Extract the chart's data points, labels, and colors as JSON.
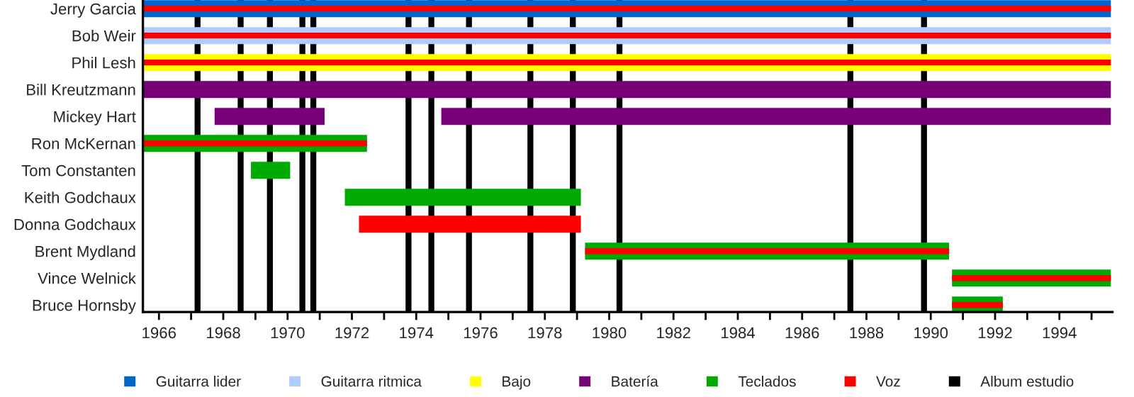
{
  "chart_data": {
    "type": "bar",
    "orientation": "horizontal",
    "categories": [
      "Jerry Garcia",
      "Bob Weir",
      "Phil Lesh",
      "Bill Kreutzmann",
      "Mickey Hart",
      "Ron McKernan",
      "Tom Constanten",
      "Keith Godchaux",
      "Donna Godchaux",
      "Brent Mydland",
      "Vince Welnick",
      "Bruce Hornsby"
    ],
    "series": [
      {
        "name": "Guitarra lider",
        "color": "#0066cc",
        "base": [
          1965.5,
          null,
          null,
          null,
          null,
          null,
          null,
          null,
          null,
          null,
          null,
          null
        ],
        "values": [
          30.1,
          null,
          null,
          null,
          null,
          null,
          null,
          null,
          null,
          null,
          null,
          null
        ]
      },
      {
        "name": "Guitarra ritmica",
        "color": "#b0ccff",
        "base": [
          null,
          1965.5,
          null,
          null,
          null,
          null,
          null,
          null,
          null,
          null,
          null,
          null
        ],
        "values": [
          null,
          30.1,
          null,
          null,
          null,
          null,
          null,
          null,
          null,
          null,
          null,
          null
        ]
      },
      {
        "name": "Bajo",
        "color": "#ffff00",
        "base": [
          null,
          null,
          1965.5,
          null,
          null,
          null,
          null,
          null,
          null,
          null,
          null,
          null
        ],
        "values": [
          null,
          null,
          30.1,
          null,
          null,
          null,
          null,
          null,
          null,
          null,
          null,
          null
        ]
      },
      {
        "name": "Batería",
        "color": "#770077",
        "base": [
          null,
          null,
          null,
          1965.5,
          1967.73,
          null,
          null,
          null,
          null,
          null,
          null,
          null
        ],
        "values": [
          null,
          null,
          null,
          30.1,
          3.42,
          null,
          null,
          null,
          null,
          null,
          null,
          null
        ]
      },
      {
        "color": "#770077",
        "base": [
          null,
          null,
          null,
          null,
          1974.78,
          null,
          null,
          null,
          null,
          null,
          null,
          null
        ],
        "values": [
          null,
          null,
          null,
          null,
          20.82,
          null,
          null,
          null,
          null,
          null,
          null,
          null
        ]
      },
      {
        "name": "Teclados",
        "color": "#00aa00",
        "base": [
          null,
          null,
          null,
          null,
          null,
          1965.5,
          1968.86,
          1971.78,
          null,
          1979.25,
          1990.66,
          1990.66
        ],
        "values": [
          null,
          null,
          null,
          null,
          null,
          6.97,
          1.22,
          7.34,
          null,
          11.32,
          4.94,
          1.58
        ]
      },
      {
        "name": "Voz",
        "color": "#ff0000",
        "base": [
          1965.5,
          1965.5,
          1965.5,
          null,
          null,
          1965.5,
          null,
          null,
          1972.22,
          1979.25,
          1990.66,
          1990.66
        ],
        "values": [
          30.1,
          30.1,
          30.1,
          null,
          null,
          6.97,
          null,
          null,
          6.9,
          11.32,
          4.94,
          1.58
        ]
      }
    ],
    "ref_lines": [
      {
        "axis": "x",
        "value": 1967.2,
        "label": "Album estudio",
        "color": "#000000"
      },
      {
        "axis": "x",
        "value": 1968.54,
        "color": "#000000"
      },
      {
        "axis": "x",
        "value": 1969.45,
        "color": "#000000"
      },
      {
        "axis": "x",
        "value": 1970.46,
        "color": "#000000"
      },
      {
        "axis": "x",
        "value": 1970.8,
        "color": "#000000"
      },
      {
        "axis": "x",
        "value": 1973.76,
        "color": "#000000"
      },
      {
        "axis": "x",
        "value": 1974.47,
        "color": "#000000"
      },
      {
        "axis": "x",
        "value": 1975.64,
        "color": "#000000"
      },
      {
        "axis": "x",
        "value": 1977.55,
        "color": "#000000"
      },
      {
        "axis": "x",
        "value": 1978.87,
        "color": "#000000"
      },
      {
        "axis": "x",
        "value": 1980.32,
        "color": "#000000"
      },
      {
        "axis": "x",
        "value": 1987.5,
        "color": "#000000"
      },
      {
        "axis": "x",
        "value": 1989.79,
        "color": "#000000"
      }
    ],
    "xlim": [
      1965.5,
      1995.65
    ],
    "xticks": [
      1966,
      {
        "value": 1967,
        "label": null
      },
      1968,
      {
        "value": 1969,
        "label": null
      },
      1970,
      {
        "value": 1971,
        "label": null
      },
      1972,
      {
        "value": 1973,
        "label": null
      },
      1974,
      {
        "value": 1975,
        "label": null
      },
      1976,
      {
        "value": 1977,
        "label": null
      },
      1978,
      {
        "value": 1979,
        "label": null
      },
      1980,
      {
        "value": 1981,
        "label": null
      },
      1982,
      {
        "value": 1983,
        "label": null
      },
      1984,
      {
        "value": 1985,
        "label": null
      },
      1986,
      {
        "value": 1987,
        "label": null
      },
      1988,
      {
        "value": 1989,
        "label": null
      },
      1990,
      {
        "value": 1991,
        "label": null
      },
      1992,
      {
        "value": 1993,
        "label": null
      },
      1994,
      {
        "value": 1995,
        "label": null
      }
    ],
    "grid": false,
    "legend": "bottom"
  }
}
